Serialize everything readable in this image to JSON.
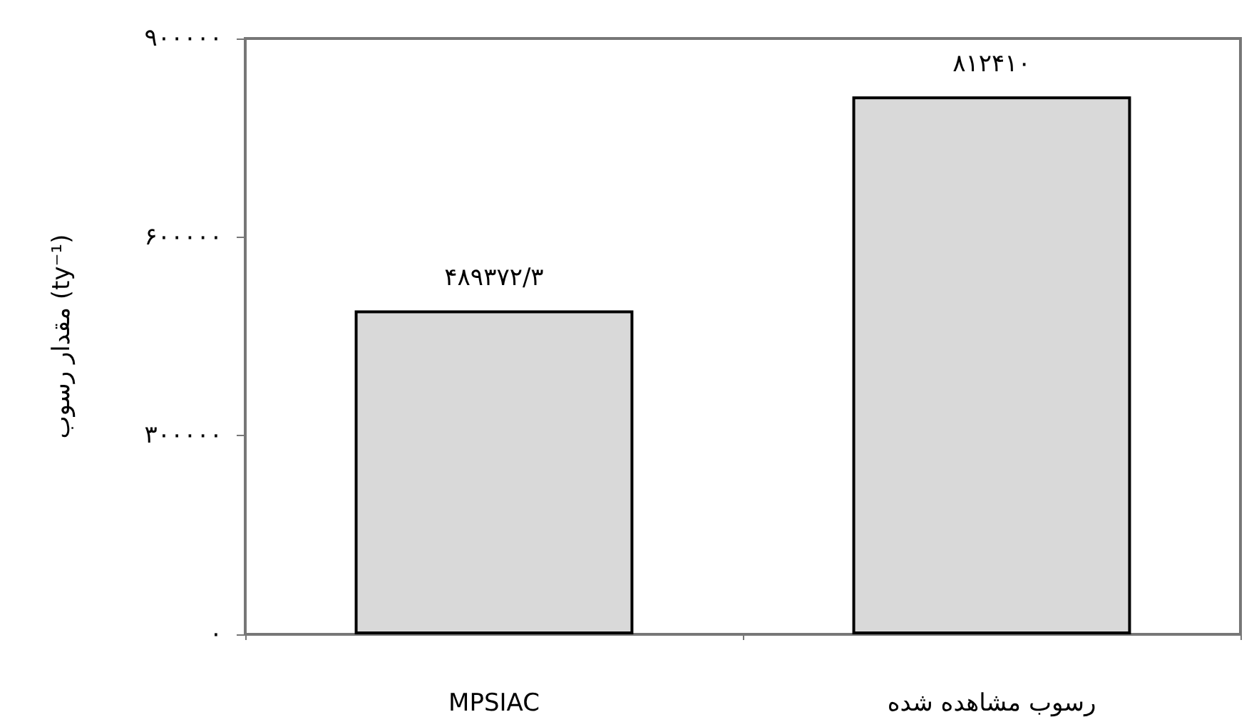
{
  "chart_data": {
    "type": "bar",
    "ylabel": "مقدار رسوب (ty⁻¹)",
    "categories": [
      "MPSIAC",
      "رسوب مشاهده شده"
    ],
    "values": [
      489372.3,
      812410
    ],
    "value_labels": [
      "۴۸۹۳۷۲/۳",
      "۸۱۲۴۱۰"
    ],
    "color": "#d9d9d9",
    "ylim": [
      0,
      900000
    ],
    "yticks": [
      {
        "value": 0,
        "label": "۰"
      },
      {
        "value": 300000,
        "label": "۳۰۰۰۰۰"
      },
      {
        "value": 600000,
        "label": "۶۰۰۰۰۰"
      },
      {
        "value": 900000,
        "label": "۹۰۰۰۰۰"
      }
    ],
    "grid": false
  }
}
